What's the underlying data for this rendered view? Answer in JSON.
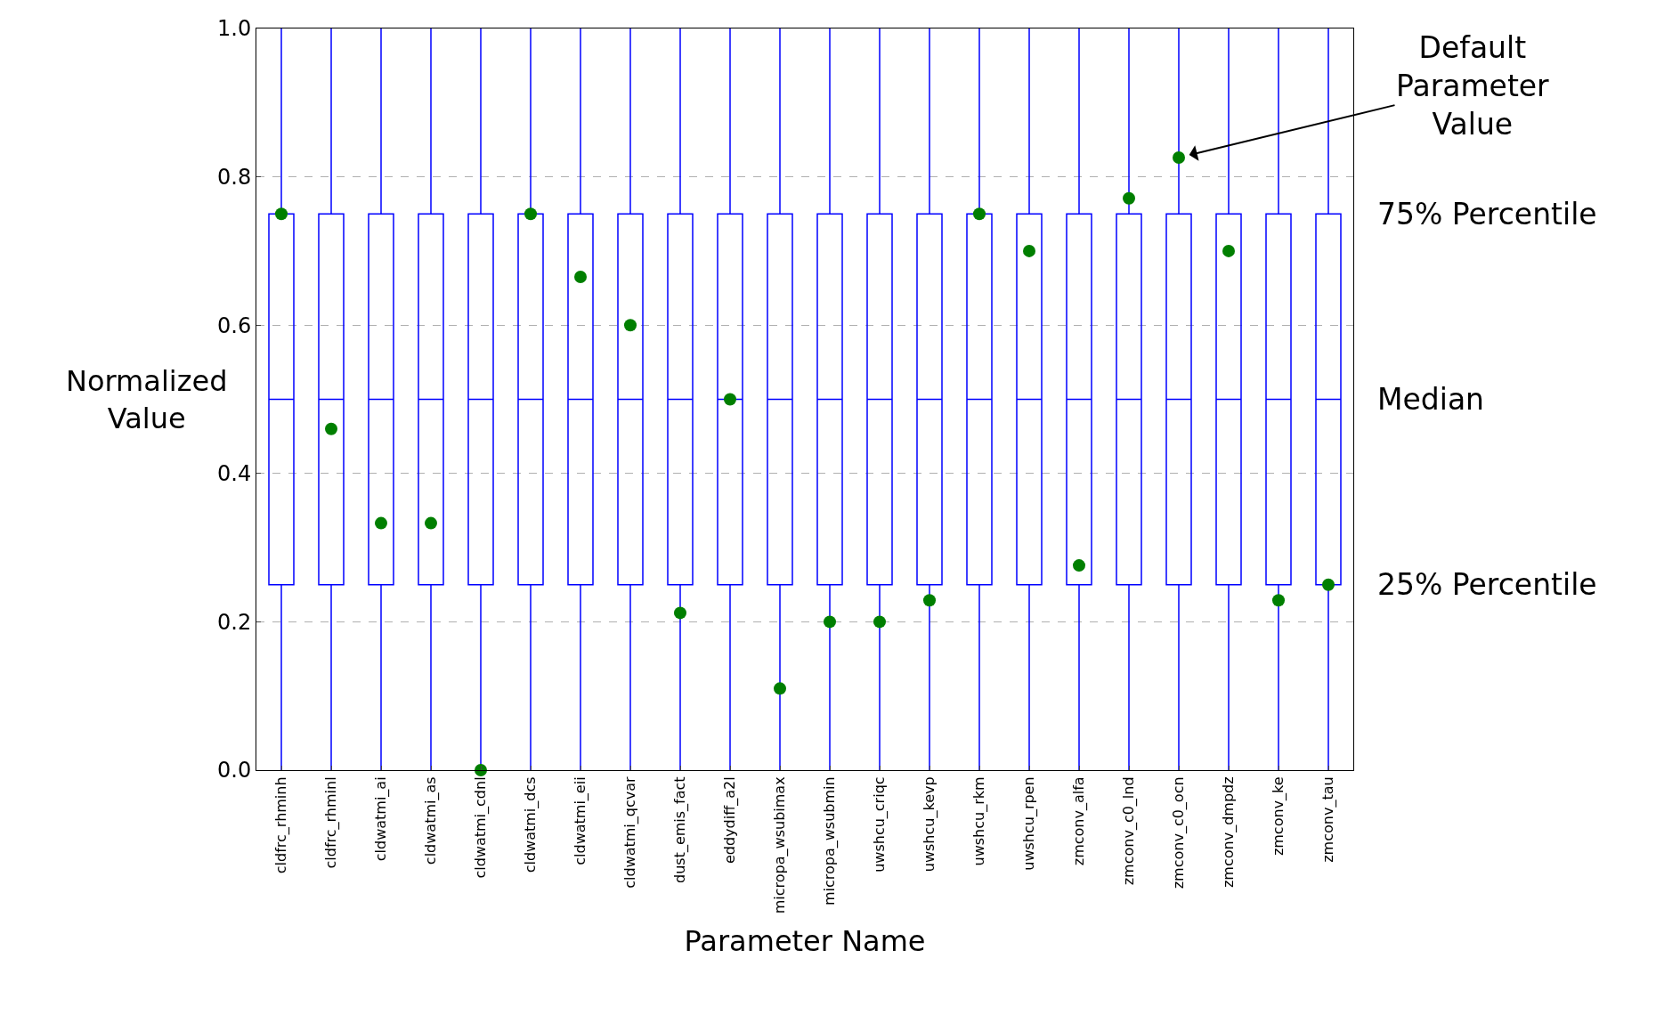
{
  "chart_data": {
    "type": "box",
    "xlabel": "Parameter Name",
    "ylabel": "Normalized Value",
    "categories": [
      "cldfrc_rhminh",
      "cldfrc_rhminl",
      "cldwatmi_ai",
      "cldwatmi_as",
      "cldwatmi_cdnl",
      "cldwatmi_dcs",
      "cldwatmi_eii",
      "cldwatmi_qcvar",
      "dust_emis_fact",
      "eddydiff_a2l",
      "micropa_wsubimax",
      "micropa_wsubmin",
      "uwshcu_criqc",
      "uwshcu_kevp",
      "uwshcu_rkm",
      "uwshcu_rpen",
      "zmconv_alfa",
      "zmconv_c0_lnd",
      "zmconv_c0_ocn",
      "zmconv_dmpdz",
      "zmconv_ke",
      "zmconv_tau"
    ],
    "series": [
      {
        "color": "#0000ff",
        "boxes": [
          {
            "low": 0,
            "q1": 0.25,
            "median": 0.5,
            "q3": 0.75,
            "high": 1
          },
          {
            "low": 0,
            "q1": 0.25,
            "median": 0.5,
            "q3": 0.75,
            "high": 1
          },
          {
            "low": 0,
            "q1": 0.25,
            "median": 0.5,
            "q3": 0.75,
            "high": 1
          },
          {
            "low": 0,
            "q1": 0.25,
            "median": 0.5,
            "q3": 0.75,
            "high": 1
          },
          {
            "low": 0,
            "q1": 0.25,
            "median": 0.5,
            "q3": 0.75,
            "high": 1
          },
          {
            "low": 0,
            "q1": 0.25,
            "median": 0.5,
            "q3": 0.75,
            "high": 1
          },
          {
            "low": 0,
            "q1": 0.25,
            "median": 0.5,
            "q3": 0.75,
            "high": 1
          },
          {
            "low": 0,
            "q1": 0.25,
            "median": 0.5,
            "q3": 0.75,
            "high": 1
          },
          {
            "low": 0,
            "q1": 0.25,
            "median": 0.5,
            "q3": 0.75,
            "high": 1
          },
          {
            "low": 0,
            "q1": 0.25,
            "median": 0.5,
            "q3": 0.75,
            "high": 1
          },
          {
            "low": 0,
            "q1": 0.25,
            "median": 0.5,
            "q3": 0.75,
            "high": 1
          },
          {
            "low": 0,
            "q1": 0.25,
            "median": 0.5,
            "q3": 0.75,
            "high": 1
          },
          {
            "low": 0,
            "q1": 0.25,
            "median": 0.5,
            "q3": 0.75,
            "high": 1
          },
          {
            "low": 0,
            "q1": 0.25,
            "median": 0.5,
            "q3": 0.75,
            "high": 1
          },
          {
            "low": 0,
            "q1": 0.25,
            "median": 0.5,
            "q3": 0.75,
            "high": 1
          },
          {
            "low": 0,
            "q1": 0.25,
            "median": 0.5,
            "q3": 0.75,
            "high": 1
          },
          {
            "low": 0,
            "q1": 0.25,
            "median": 0.5,
            "q3": 0.75,
            "high": 1
          },
          {
            "low": 0,
            "q1": 0.25,
            "median": 0.5,
            "q3": 0.75,
            "high": 1
          },
          {
            "low": 0,
            "q1": 0.25,
            "median": 0.5,
            "q3": 0.75,
            "high": 1
          },
          {
            "low": 0,
            "q1": 0.25,
            "median": 0.5,
            "q3": 0.75,
            "high": 1
          },
          {
            "low": 0,
            "q1": 0.25,
            "median": 0.5,
            "q3": 0.75,
            "high": 1
          },
          {
            "low": 0,
            "q1": 0.25,
            "median": 0.5,
            "q3": 0.75,
            "high": 1
          }
        ]
      },
      {
        "type": "scatter",
        "color": "#007f00",
        "marker": "circle",
        "x": [
          "cldfrc_rhminh",
          "cldfrc_rhminl",
          "cldwatmi_ai",
          "cldwatmi_as",
          "cldwatmi_cdnl",
          "cldwatmi_dcs",
          "cldwatmi_eii",
          "cldwatmi_qcvar",
          "dust_emis_fact",
          "eddydiff_a2l",
          "micropa_wsubimax",
          "micropa_wsubmin",
          "uwshcu_criqc",
          "uwshcu_kevp",
          "uwshcu_rkm",
          "uwshcu_rpen",
          "zmconv_alfa",
          "zmconv_c0_lnd",
          "zmconv_c0_ocn",
          "zmconv_dmpdz",
          "zmconv_ke",
          "zmconv_tau"
        ],
        "values": [
          0.75,
          0.46,
          0.333,
          0.333,
          0.0,
          0.75,
          0.665,
          0.6,
          0.212,
          0.5,
          0.11,
          0.2,
          0.2,
          0.229,
          0.75,
          0.7,
          0.276,
          0.771,
          0.826,
          0.7,
          0.229,
          0.25
        ]
      }
    ],
    "ylim": [
      0,
      1
    ],
    "yticks": [
      {
        "value": 0,
        "label": "0.0"
      },
      0.2,
      0.4,
      0.6,
      0.8,
      {
        "value": 1,
        "label": "1.0"
      }
    ],
    "grid": "y",
    "annotations": [
      {
        "text": "Default Parameter Value",
        "x": "zmconv_c0_ocn",
        "y": 0.826
      },
      "75% Percentile",
      "Median",
      "25% Percentile"
    ]
  }
}
